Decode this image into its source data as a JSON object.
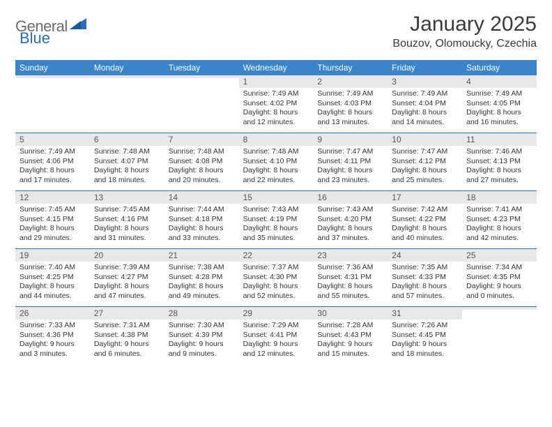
{
  "brand": {
    "text1": "General",
    "text2": "Blue"
  },
  "title": "January 2025",
  "location": "Bouzov, Olomoucky, Czechia",
  "colors": {
    "header_bg": "#3a85c9",
    "header_fg": "#ffffff",
    "daynum_bg": "#e8e8e8",
    "rule": "#2d6fa8",
    "logo_gray": "#6a6a6a",
    "logo_blue": "#2a6fb5"
  },
  "day_labels": [
    "Sunday",
    "Monday",
    "Tuesday",
    "Wednesday",
    "Thursday",
    "Friday",
    "Saturday"
  ],
  "weeks": [
    [
      null,
      null,
      null,
      {
        "n": "1",
        "sunrise": "7:49 AM",
        "sunset": "4:02 PM",
        "dl": "8 hours and 12 minutes."
      },
      {
        "n": "2",
        "sunrise": "7:49 AM",
        "sunset": "4:03 PM",
        "dl": "8 hours and 13 minutes."
      },
      {
        "n": "3",
        "sunrise": "7:49 AM",
        "sunset": "4:04 PM",
        "dl": "8 hours and 14 minutes."
      },
      {
        "n": "4",
        "sunrise": "7:49 AM",
        "sunset": "4:05 PM",
        "dl": "8 hours and 16 minutes."
      }
    ],
    [
      {
        "n": "5",
        "sunrise": "7:49 AM",
        "sunset": "4:06 PM",
        "dl": "8 hours and 17 minutes."
      },
      {
        "n": "6",
        "sunrise": "7:48 AM",
        "sunset": "4:07 PM",
        "dl": "8 hours and 18 minutes."
      },
      {
        "n": "7",
        "sunrise": "7:48 AM",
        "sunset": "4:08 PM",
        "dl": "8 hours and 20 minutes."
      },
      {
        "n": "8",
        "sunrise": "7:48 AM",
        "sunset": "4:10 PM",
        "dl": "8 hours and 22 minutes."
      },
      {
        "n": "9",
        "sunrise": "7:47 AM",
        "sunset": "4:11 PM",
        "dl": "8 hours and 23 minutes."
      },
      {
        "n": "10",
        "sunrise": "7:47 AM",
        "sunset": "4:12 PM",
        "dl": "8 hours and 25 minutes."
      },
      {
        "n": "11",
        "sunrise": "7:46 AM",
        "sunset": "4:13 PM",
        "dl": "8 hours and 27 minutes."
      }
    ],
    [
      {
        "n": "12",
        "sunrise": "7:45 AM",
        "sunset": "4:15 PM",
        "dl": "8 hours and 29 minutes."
      },
      {
        "n": "13",
        "sunrise": "7:45 AM",
        "sunset": "4:16 PM",
        "dl": "8 hours and 31 minutes."
      },
      {
        "n": "14",
        "sunrise": "7:44 AM",
        "sunset": "4:18 PM",
        "dl": "8 hours and 33 minutes."
      },
      {
        "n": "15",
        "sunrise": "7:43 AM",
        "sunset": "4:19 PM",
        "dl": "8 hours and 35 minutes."
      },
      {
        "n": "16",
        "sunrise": "7:43 AM",
        "sunset": "4:20 PM",
        "dl": "8 hours and 37 minutes."
      },
      {
        "n": "17",
        "sunrise": "7:42 AM",
        "sunset": "4:22 PM",
        "dl": "8 hours and 40 minutes."
      },
      {
        "n": "18",
        "sunrise": "7:41 AM",
        "sunset": "4:23 PM",
        "dl": "8 hours and 42 minutes."
      }
    ],
    [
      {
        "n": "19",
        "sunrise": "7:40 AM",
        "sunset": "4:25 PM",
        "dl": "8 hours and 44 minutes."
      },
      {
        "n": "20",
        "sunrise": "7:39 AM",
        "sunset": "4:27 PM",
        "dl": "8 hours and 47 minutes."
      },
      {
        "n": "21",
        "sunrise": "7:38 AM",
        "sunset": "4:28 PM",
        "dl": "8 hours and 49 minutes."
      },
      {
        "n": "22",
        "sunrise": "7:37 AM",
        "sunset": "4:30 PM",
        "dl": "8 hours and 52 minutes."
      },
      {
        "n": "23",
        "sunrise": "7:36 AM",
        "sunset": "4:31 PM",
        "dl": "8 hours and 55 minutes."
      },
      {
        "n": "24",
        "sunrise": "7:35 AM",
        "sunset": "4:33 PM",
        "dl": "8 hours and 57 minutes."
      },
      {
        "n": "25",
        "sunrise": "7:34 AM",
        "sunset": "4:35 PM",
        "dl": "9 hours and 0 minutes."
      }
    ],
    [
      {
        "n": "26",
        "sunrise": "7:33 AM",
        "sunset": "4:36 PM",
        "dl": "9 hours and 3 minutes."
      },
      {
        "n": "27",
        "sunrise": "7:31 AM",
        "sunset": "4:38 PM",
        "dl": "9 hours and 6 minutes."
      },
      {
        "n": "28",
        "sunrise": "7:30 AM",
        "sunset": "4:39 PM",
        "dl": "9 hours and 9 minutes."
      },
      {
        "n": "29",
        "sunrise": "7:29 AM",
        "sunset": "4:41 PM",
        "dl": "9 hours and 12 minutes."
      },
      {
        "n": "30",
        "sunrise": "7:28 AM",
        "sunset": "4:43 PM",
        "dl": "9 hours and 15 minutes."
      },
      {
        "n": "31",
        "sunrise": "7:26 AM",
        "sunset": "4:45 PM",
        "dl": "9 hours and 18 minutes."
      },
      null
    ]
  ],
  "labels": {
    "sunrise_prefix": "Sunrise: ",
    "sunset_prefix": "Sunset: ",
    "daylight_prefix": "Daylight: "
  }
}
